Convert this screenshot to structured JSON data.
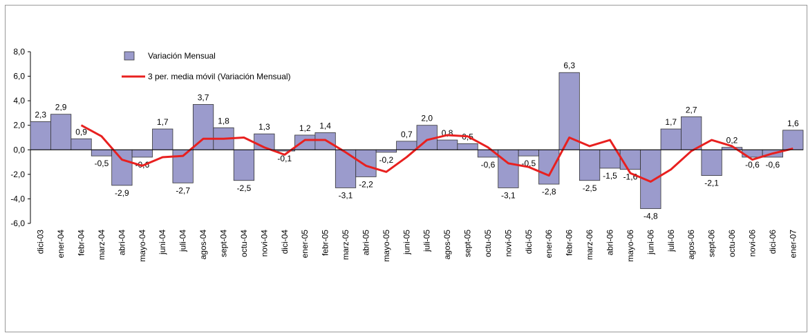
{
  "chart_data": {
    "type": "bar",
    "categories": [
      "dici-03",
      "ener-04",
      "febr-04",
      "marz-04",
      "abri-04",
      "mayo-04",
      "juni-04",
      "juli-04",
      "agos-04",
      "sept-04",
      "octu-04",
      "novi-04",
      "dici-04",
      "ener-05",
      "febr-05",
      "marz-05",
      "abri-05",
      "mayo-05",
      "juni-05",
      "juli-05",
      "agos-05",
      "sept-05",
      "octu-05",
      "novi-05",
      "dici-05",
      "ener-06",
      "febr-06",
      "marz-06",
      "abri-06",
      "mayo-06",
      "juni-06",
      "juli-06",
      "agos-06",
      "sept-06",
      "octu-06",
      "novi-06",
      "dici-06",
      "ener-07"
    ],
    "series": [
      {
        "name": "Variación Mensual",
        "color": "#9b9bcc",
        "type": "bar",
        "values": [
          2.3,
          2.9,
          0.9,
          -0.5,
          -2.9,
          -0.6,
          1.7,
          -2.7,
          3.7,
          1.8,
          -2.5,
          1.3,
          -0.1,
          1.2,
          1.4,
          -3.1,
          -2.2,
          -0.2,
          0.7,
          2.0,
          0.8,
          0.5,
          -0.6,
          -3.1,
          -0.5,
          -2.8,
          6.3,
          -2.5,
          -1.5,
          -1.6,
          -4.8,
          1.7,
          2.7,
          -2.1,
          0.2,
          -0.6,
          -0.6,
          1.6
        ],
        "value_labels": [
          "2,3",
          "2,9",
          "0,9",
          "-0,5",
          "-2,9",
          "-0,6",
          "1,7",
          "-2,7",
          "3,7",
          "1,8",
          "-2,5",
          "1,3",
          "-0,1",
          "1,2",
          "1,4",
          "-3,1",
          "-2,2",
          "-0,2",
          "0,7",
          "2,0",
          "0,8",
          "0,5",
          "-0,6",
          "-3,1",
          "-0,5",
          "-2,8",
          "6,3",
          "-2,5",
          "-1,5",
          "-1,6",
          "-4,8",
          "1,7",
          "2,7",
          "-2,1",
          "0,2",
          "-0,6",
          "-0,6",
          "1,6"
        ]
      },
      {
        "name": "3 per. media móvil (Variación Mensual)",
        "color": "#e8201f",
        "type": "line",
        "values": [
          null,
          null,
          2.0,
          1.1,
          -0.8,
          -1.3,
          -0.6,
          -0.5,
          0.9,
          0.9,
          1.0,
          0.2,
          -0.4,
          0.8,
          0.8,
          -0.2,
          -1.3,
          -1.8,
          -0.6,
          0.8,
          1.2,
          1.1,
          0.2,
          -1.1,
          -1.4,
          -2.1,
          1.0,
          0.3,
          0.8,
          -1.9,
          -2.6,
          -1.6,
          -0.1,
          0.8,
          0.3,
          -0.8,
          -0.3,
          0.1
        ]
      }
    ],
    "ylim": [
      -6,
      8
    ],
    "yticks": [
      {
        "value": -6,
        "label": "-6,0"
      },
      {
        "value": -4,
        "label": "-4,0"
      },
      {
        "value": -2,
        "label": "-2,0"
      },
      {
        "value": 0,
        "label": "0,0"
      },
      {
        "value": 2,
        "label": "2,0"
      },
      {
        "value": 4,
        "label": "4,0"
      },
      {
        "value": 6,
        "label": "6,0"
      },
      {
        "value": 8,
        "label": "8,0"
      }
    ],
    "legend": "top-left"
  }
}
